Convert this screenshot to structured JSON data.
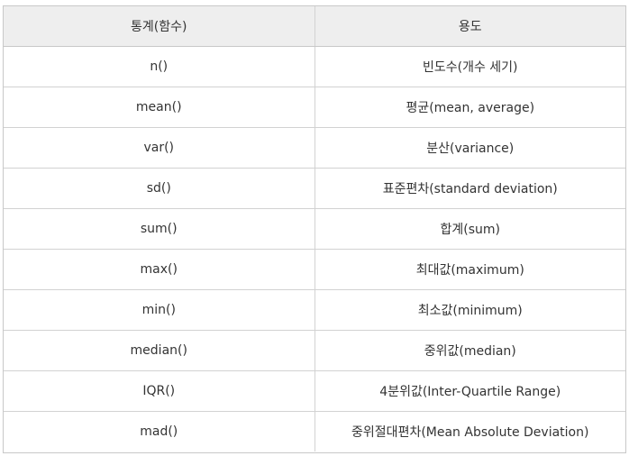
{
  "table": {
    "headers": [
      "통계(함수)",
      "용도"
    ],
    "rows": [
      {
        "func": "n()",
        "use": "빈도수(개수 세기)"
      },
      {
        "func": "mean()",
        "use": "평균(mean, average)"
      },
      {
        "func": "var()",
        "use": "분산(variance)"
      },
      {
        "func": "sd()",
        "use": "표준편차(standard deviation)"
      },
      {
        "func": "sum()",
        "use": "합계(sum)"
      },
      {
        "func": "max()",
        "use": "최대값(maximum)"
      },
      {
        "func": "min()",
        "use": "최소값(minimum)"
      },
      {
        "func": "median()",
        "use": "중위값(median)"
      },
      {
        "func": "IQR()",
        "use": "4분위값(Inter-Quartile Range)"
      },
      {
        "func": "mad()",
        "use": "중위절대편차(Mean Absolute Deviation)"
      }
    ]
  }
}
